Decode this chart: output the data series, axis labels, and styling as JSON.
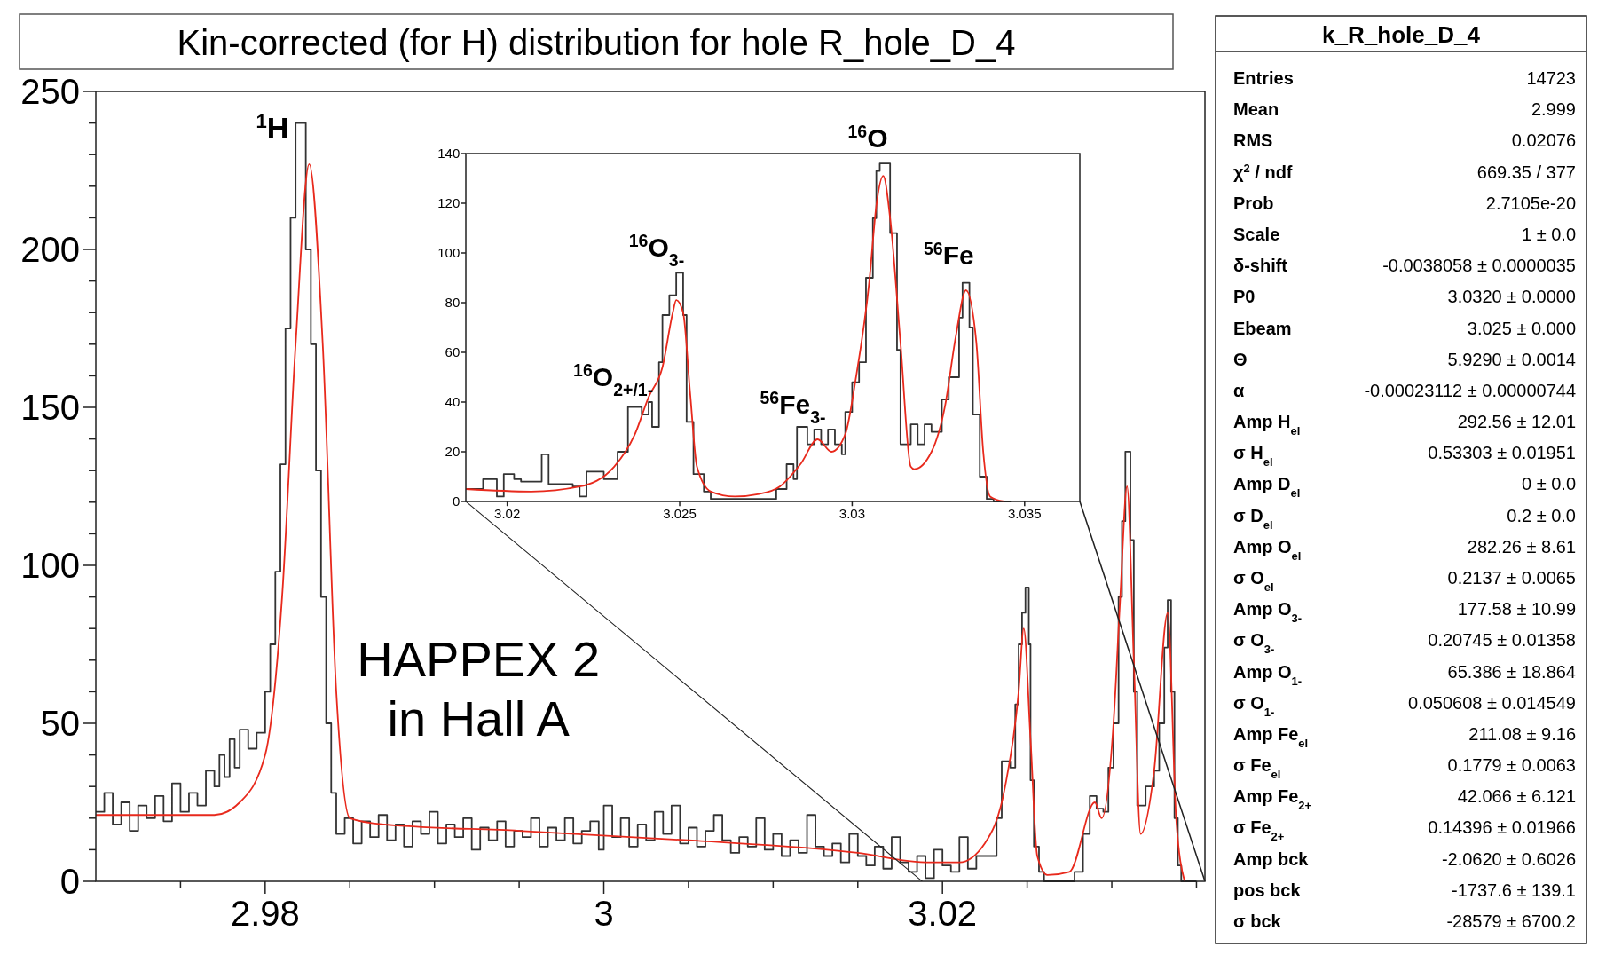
{
  "chart_data": [
    {
      "type": "step",
      "title": "Kin-corrected (for H) distribution for hole R_hole_D_4",
      "xlim": [
        2.97,
        3.0355
      ],
      "ylim": [
        0,
        250
      ],
      "xticks": [
        {
          "value": 2.975,
          "label": null
        },
        2.98,
        {
          "value": 2.985,
          "label": null
        },
        {
          "value": 2.99,
          "label": null
        },
        {
          "value": 2.995,
          "label": null
        },
        3,
        {
          "value": 3.005,
          "label": null
        },
        {
          "value": 3.01,
          "label": null
        },
        {
          "value": 3.015,
          "label": null
        },
        3.02,
        {
          "value": 3.025,
          "label": null
        },
        {
          "value": 3.03,
          "label": null
        },
        {
          "value": 3.035,
          "label": null
        }
      ],
      "yticks": [
        0,
        {
          "value": 10,
          "label": null
        },
        {
          "value": 20,
          "label": null
        },
        {
          "value": 30,
          "label": null
        },
        {
          "value": 40,
          "label": null
        },
        50,
        {
          "value": 60,
          "label": null
        },
        {
          "value": 70,
          "label": null
        },
        {
          "value": 80,
          "label": null
        },
        {
          "value": 90,
          "label": null
        },
        100,
        {
          "value": 110,
          "label": null
        },
        {
          "value": 120,
          "label": null
        },
        {
          "value": 130,
          "label": null
        },
        {
          "value": 140,
          "label": null
        },
        150,
        {
          "value": 160,
          "label": null
        },
        {
          "value": 170,
          "label": null
        },
        {
          "value": 180,
          "label": null
        },
        {
          "value": 190,
          "label": null
        },
        200,
        {
          "value": 210,
          "label": null
        },
        {
          "value": 220,
          "label": null
        },
        {
          "value": 230,
          "label": null
        },
        {
          "value": 240,
          "label": null
        },
        250
      ],
      "series": [
        {
          "type": "step",
          "color": "#333333",
          "x": [
            2.97,
            2.9705,
            2.971,
            2.9715,
            2.972,
            2.9725,
            2.973,
            2.9735,
            2.974,
            2.9745,
            2.975,
            2.9755,
            2.976,
            2.9765,
            2.977,
            2.9773,
            2.9776,
            2.9779,
            2.9782,
            2.9785,
            2.979,
            2.9795,
            2.98,
            2.9803,
            2.9806,
            2.9809,
            2.9812,
            2.9815,
            2.9818,
            2.9821,
            2.9824,
            2.9827,
            2.983,
            2.9833,
            2.9836,
            2.9839,
            2.9842,
            2.9847,
            2.9852,
            2.9857,
            2.9862,
            2.9867,
            2.9872,
            2.9877,
            2.9882,
            2.9887,
            2.9892,
            2.9897,
            2.9902,
            2.9907,
            2.9912,
            2.9917,
            2.9922,
            2.9927,
            2.9932,
            2.9937,
            2.9942,
            2.9947,
            2.9952,
            2.9957,
            2.9962,
            2.9967,
            2.9972,
            2.9977,
            2.9982,
            2.9987,
            2.9992,
            2.9997,
            3.0,
            3.0005,
            3.001,
            3.0015,
            3.002,
            3.0025,
            3.003,
            3.0035,
            3.004,
            3.0045,
            3.005,
            3.0055,
            3.006,
            3.0065,
            3.007,
            3.0075,
            3.008,
            3.0085,
            3.009,
            3.0095,
            3.01,
            3.0105,
            3.011,
            3.0115,
            3.012,
            3.0125,
            3.013,
            3.0135,
            3.014,
            3.0145,
            3.015,
            3.0155,
            3.016,
            3.0165,
            3.017,
            3.0175,
            3.018,
            3.0185,
            3.019,
            3.0195,
            3.02,
            3.0205,
            3.021,
            3.0215,
            3.022,
            3.0232,
            3.0235,
            3.024,
            3.0243,
            3.0245,
            3.0247,
            3.0249,
            3.0251,
            3.0252,
            3.0254,
            3.0257,
            3.026,
            3.0278,
            3.0283,
            3.0287,
            3.0291,
            3.0295,
            3.0298,
            3.0301,
            3.0304,
            3.0306,
            3.0308,
            3.0311,
            3.0313,
            3.0315,
            3.032,
            3.0325,
            3.0328,
            3.0331,
            3.0333,
            3.0335,
            3.0337,
            3.0339,
            3.0341,
            3.035
          ],
          "values": [
            22,
            28,
            18,
            25,
            16,
            24,
            20,
            27,
            19,
            31,
            22,
            28,
            24,
            35,
            30,
            40,
            33,
            45,
            36,
            48,
            42,
            47,
            60,
            75,
            98,
            132,
            175,
            210,
            240,
            240,
            200,
            170,
            130,
            90,
            50,
            28,
            15,
            20,
            12,
            19,
            14,
            21,
            13,
            18,
            11,
            19,
            15,
            22,
            12,
            18,
            14,
            20,
            10,
            17,
            13,
            19,
            11,
            16,
            14,
            20,
            11,
            17,
            13,
            20,
            12,
            16,
            19,
            10,
            24,
            14,
            20,
            11,
            18,
            13,
            22,
            15,
            24,
            12,
            17,
            11,
            16,
            21,
            13,
            9,
            14,
            11,
            20,
            10,
            15,
            8,
            13,
            9,
            21,
            11,
            8,
            12,
            6,
            15,
            8,
            5,
            11,
            4,
            14,
            6,
            3,
            8,
            1,
            10,
            5,
            3,
            14,
            4,
            8,
            20,
            38,
            36,
            56,
            75,
            85,
            93,
            75,
            32,
            11,
            3,
            0,
            3,
            15,
            27,
            23,
            22,
            36,
            50,
            90,
            114,
            136,
            108,
            60,
            24,
            30,
            35,
            50,
            74,
            89,
            60,
            20,
            5,
            0,
            0
          ]
        },
        {
          "type": "line",
          "color": "#e8291c",
          "x": [
            2.97,
            2.977,
            2.9785,
            2.98,
            2.981,
            2.9818,
            2.9826,
            2.9834,
            2.9842,
            2.985,
            2.987,
            2.995,
            3.005,
            3.015,
            3.019,
            3.021,
            3.0225,
            3.0237,
            3.0245,
            3.0248,
            3.0252,
            3.0256,
            3.0262,
            3.0275,
            3.029,
            3.0294,
            3.0301,
            3.0305,
            3.0309,
            3.0313,
            3.0317,
            3.0325,
            3.0333,
            3.0338,
            3.0343
          ],
          "values": [
            21,
            21,
            25,
            40,
            90,
            170,
            227,
            170,
            60,
            20,
            18,
            16,
            13,
            9,
            6,
            6,
            12,
            30,
            60,
            80,
            45,
            8,
            2,
            3,
            25,
            20,
            50,
            90,
            125,
            70,
            15,
            35,
            85,
            20,
            0
          ]
        }
      ],
      "annotations": [
        {
          "text": "$^{1}$H",
          "x": 2.9821,
          "y": 240
        },
        "HAPPEX 2\nin Hall A"
      ]
    },
    {
      "type": "step",
      "xlim": [
        3.0188,
        3.0366
      ],
      "ylim": [
        0,
        140
      ],
      "xticks": [
        3.02,
        3.025,
        3.03,
        3.035
      ],
      "yticks": [
        0,
        20,
        40,
        60,
        80,
        100,
        120,
        140
      ],
      "series": [
        {
          "type": "step",
          "color": "#333333",
          "x": [
            3.0188,
            3.0193,
            3.0197,
            3.0199,
            3.0202,
            3.0204,
            3.021,
            3.0212,
            3.0219,
            3.0221,
            3.0223,
            3.0228,
            3.0232,
            3.0235,
            3.0239,
            3.0241,
            3.0242,
            3.0244,
            3.0245,
            3.0247,
            3.0249,
            3.0251,
            3.0252,
            3.0254,
            3.0257,
            3.0259,
            3.0278,
            3.0281,
            3.0283,
            3.0284,
            3.0287,
            3.0289,
            3.0291,
            3.0293,
            3.0295,
            3.0297,
            3.0298,
            3.03,
            3.0302,
            3.0304,
            3.0306,
            3.0307,
            3.0308,
            3.0311,
            3.0313,
            3.0314,
            3.0317,
            3.0319,
            3.0321,
            3.0323,
            3.0326,
            3.0328,
            3.0331,
            3.0332,
            3.0334,
            3.0335,
            3.0337,
            3.0339,
            3.0341,
            3.0346
          ],
          "values": [
            5,
            9,
            2,
            11,
            9,
            8,
            19,
            7,
            6,
            2,
            12,
            9,
            20,
            38,
            35,
            40,
            30,
            56,
            75,
            83,
            92,
            75,
            32,
            11,
            4,
            1,
            5,
            15,
            9,
            30,
            23,
            29,
            23,
            29,
            23,
            19,
            36,
            48,
            56,
            90,
            114,
            133,
            136,
            108,
            61,
            23,
            31,
            23,
            31,
            28,
            41,
            50,
            74,
            88,
            70,
            35,
            10,
            1,
            0,
            0
          ]
        },
        {
          "type": "line",
          "color": "#e8291c",
          "x": [
            3.0188,
            3.0207,
            3.0221,
            3.0231,
            3.0237,
            3.0241,
            3.0245,
            3.0248,
            3.0249,
            3.0251,
            3.0253,
            3.0255,
            3.0259,
            3.0266,
            3.0273,
            3.0279,
            3.0285,
            3.029,
            3.0294,
            3.0298,
            3.0301,
            3.0305,
            3.0307,
            3.0309,
            3.0311,
            3.0314,
            3.0317,
            3.0318,
            3.0323,
            3.0327,
            3.033,
            3.0333,
            3.0336,
            3.0338,
            3.034,
            3.0344
          ],
          "values": [
            5,
            4,
            6,
            14,
            27,
            42,
            54,
            76,
            81,
            76,
            44,
            14,
            4,
            2,
            3,
            6,
            15,
            25,
            20,
            27,
            49,
            89,
            119,
            131,
            114,
            64,
            14,
            13,
            20,
            39,
            66,
            85,
            64,
            20,
            2,
            0
          ]
        }
      ],
      "annotations": [
        {
          "text": "$^{16}$O$_{2+/1-}$",
          "x": 3.024,
          "y": 40
        },
        {
          "text": "$^{16}$O$_{3-}$",
          "x": 3.0249,
          "y": 92
        },
        {
          "text": "$^{56}$Fe$_{3-}$",
          "x": 3.029,
          "y": 29
        },
        {
          "text": "$^{16}$O",
          "x": 3.0308,
          "y": 136
        },
        {
          "text": "$^{56}$Fe",
          "x": 3.0333,
          "y": 89
        }
      ]
    },
    {
      "type": "other",
      "title": "k_R_hole_D_4",
      "categories": [
        "Entries",
        "Mean",
        "RMS",
        "χ$^{2}$ / ndf",
        "Prob",
        "Scale",
        "δ-shift",
        "P0",
        "Ebeam",
        "Θ",
        "α",
        "Amp H$_{el}$",
        "σ H$_{el}$",
        "Amp D$_{el}$",
        "σ D$_{el}$",
        "Amp O$_{el}$",
        "σ O$_{el}$",
        "Amp O$_{3-}$",
        "σ O$_{3-}$",
        "Amp O$_{1-}$",
        "σ O$_{1-}$",
        "Amp Fe$_{el}$",
        "σ Fe$_{el}$",
        "Amp Fe$_{2+}$",
        "σ Fe$_{2+}$",
        "Amp bck",
        "pos bck",
        "σ bck"
      ],
      "annotations": [
        "14723",
        "2.999",
        "0.02076",
        "669.35 / 377",
        "2.7105e-20",
        "1 ± 0.0",
        "-0.0038058 ± 0.0000035",
        "3.0320 ± 0.0000",
        "3.025 ± 0.000",
        "5.9290 ± 0.0014",
        "-0.00023112 ± 0.00000744",
        "292.56 ± 12.01",
        "0.53303 ± 0.01951",
        "0 ± 0.0",
        "0.2 ± 0.0",
        "282.26 ± 8.61",
        "0.2137 ± 0.0065",
        "177.58 ± 10.99",
        "0.20745 ± 0.01358",
        "65.386 ± 18.864",
        "0.050608 ± 0.014549",
        "211.08 ± 9.16",
        "0.1779 ± 0.0063",
        "42.066 ± 6.121",
        "0.14396 ± 0.01966",
        "-2.0620 ± 0.6026",
        "-1737.6 ± 139.1",
        "-28579 ± 6700.2"
      ]
    }
  ]
}
